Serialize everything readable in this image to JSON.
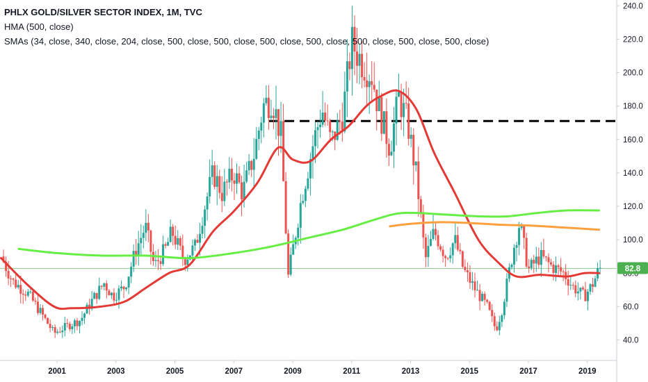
{
  "legend": {
    "title": "PHLX GOLD/SILVER SECTOR INDEX, 1M, TVC",
    "hma": "HMA (500, close)",
    "smas": "SMAs (34, close, 340, close, 204, close, 500, close, 500, close, 500, close, 500, close, 500, close, 500, close, 500, close)"
  },
  "price_tag": "82.8",
  "colors": {
    "up": "#26a69a",
    "down": "#ef5350",
    "hma": "#e53935",
    "sma_green": "#66ee44",
    "sma_orange": "#ffa040",
    "resistance": "#000000",
    "price_line": "#66bb6a",
    "price_tag_bg": "#4caf50"
  },
  "chart_data": {
    "type": "candlestick",
    "y_ticks": [
      "240.0",
      "220.0",
      "200.0",
      "180.0",
      "160.0",
      "140.0",
      "120.0",
      "100.0",
      "80.0",
      "60.0",
      "40.0"
    ],
    "x_ticks": [
      {
        "label": "2001",
        "t": 2001.0
      },
      {
        "label": "2003",
        "t": 2003.0
      },
      {
        "label": "2005",
        "t": 2005.0
      },
      {
        "label": "2007",
        "t": 2007.0
      },
      {
        "label": "2009",
        "t": 2009.0
      },
      {
        "label": "2011",
        "t": 2011.0
      },
      {
        "label": "2013",
        "t": 2013.0
      },
      {
        "label": "2015",
        "t": 2015.0
      },
      {
        "label": "2017",
        "t": 2017.0
      },
      {
        "label": "2019",
        "t": 2019.0
      }
    ],
    "ylim": [
      30,
      243
    ],
    "xlim": [
      1999.1,
      2019.78
    ],
    "candle_anchors": [
      [
        1999.1,
        90
      ],
      [
        1999.5,
        75
      ],
      [
        2000.0,
        68
      ],
      [
        2000.5,
        55
      ],
      [
        2000.9,
        44
      ],
      [
        2001.3,
        48
      ],
      [
        2001.8,
        52
      ],
      [
        2002.2,
        64
      ],
      [
        2002.6,
        74
      ],
      [
        2002.9,
        66
      ],
      [
        2003.3,
        72
      ],
      [
        2003.7,
        95
      ],
      [
        2004.0,
        108
      ],
      [
        2004.3,
        84
      ],
      [
        2004.7,
        95
      ],
      [
        2004.9,
        105
      ],
      [
        2005.3,
        88
      ],
      [
        2005.7,
        96
      ],
      [
        2005.9,
        112
      ],
      [
        2006.3,
        140
      ],
      [
        2006.6,
        128
      ],
      [
        2007.0,
        140
      ],
      [
        2007.3,
        128
      ],
      [
        2007.7,
        152
      ],
      [
        2008.0,
        180
      ],
      [
        2008.3,
        185
      ],
      [
        2008.6,
        162
      ],
      [
        2008.85,
        78
      ],
      [
        2009.3,
        125
      ],
      [
        2009.7,
        158
      ],
      [
        2010.0,
        178
      ],
      [
        2010.3,
        158
      ],
      [
        2010.7,
        175
      ],
      [
        2011.0,
        218
      ],
      [
        2011.3,
        208
      ],
      [
        2011.7,
        198
      ],
      [
        2011.9,
        180
      ],
      [
        2012.3,
        155
      ],
      [
        2012.6,
        185
      ],
      [
        2012.9,
        170
      ],
      [
        2013.2,
        138
      ],
      [
        2013.5,
        88
      ],
      [
        2013.8,
        105
      ],
      [
        2014.2,
        90
      ],
      [
        2014.5,
        100
      ],
      [
        2014.8,
        82
      ],
      [
        2015.2,
        70
      ],
      [
        2015.6,
        60
      ],
      [
        2015.9,
        46
      ],
      [
        2016.1,
        58
      ],
      [
        2016.5,
        95
      ],
      [
        2016.7,
        110
      ],
      [
        2017.0,
        82
      ],
      [
        2017.4,
        90
      ],
      [
        2017.8,
        84
      ],
      [
        2018.2,
        80
      ],
      [
        2018.5,
        72
      ],
      [
        2018.9,
        66
      ],
      [
        2019.2,
        74
      ],
      [
        2019.4,
        82.8
      ]
    ],
    "series": [
      {
        "name": "HMA (500, close)",
        "color": "#e53935",
        "points": [
          [
            1999.1,
            89
          ],
          [
            2000.0,
            73
          ],
          [
            2000.9,
            60
          ],
          [
            2001.5,
            59
          ],
          [
            2002.5,
            60
          ],
          [
            2003.3,
            63
          ],
          [
            2004.0,
            71
          ],
          [
            2004.8,
            80
          ],
          [
            2005.5,
            85
          ],
          [
            2006.3,
            105
          ],
          [
            2007.0,
            117
          ],
          [
            2007.8,
            134
          ],
          [
            2008.5,
            155
          ],
          [
            2009.0,
            148
          ],
          [
            2009.6,
            147
          ],
          [
            2010.3,
            160
          ],
          [
            2010.9,
            168
          ],
          [
            2011.5,
            180
          ],
          [
            2012.0,
            186
          ],
          [
            2012.6,
            189
          ],
          [
            2013.2,
            178
          ],
          [
            2013.8,
            152
          ],
          [
            2014.5,
            128
          ],
          [
            2015.3,
            100
          ],
          [
            2016.0,
            86
          ],
          [
            2016.6,
            78
          ],
          [
            2017.4,
            79
          ],
          [
            2018.3,
            78
          ],
          [
            2018.9,
            80
          ],
          [
            2019.4,
            80
          ]
        ]
      },
      {
        "name": "SMA green",
        "color": "#66ee44",
        "points": [
          [
            1999.7,
            94.5
          ],
          [
            2001.0,
            92
          ],
          [
            2002.5,
            90.5
          ],
          [
            2004.0,
            90.5
          ],
          [
            2005.5,
            89
          ],
          [
            2007.0,
            92
          ],
          [
            2008.3,
            96
          ],
          [
            2009.5,
            101
          ],
          [
            2010.7,
            106
          ],
          [
            2011.6,
            111
          ],
          [
            2012.5,
            115.5
          ],
          [
            2013.2,
            116
          ],
          [
            2014.2,
            115
          ],
          [
            2015.3,
            114
          ],
          [
            2016.3,
            114
          ],
          [
            2017.3,
            116
          ],
          [
            2018.3,
            117.5
          ],
          [
            2019.4,
            117.5
          ]
        ]
      },
      {
        "name": "SMA orange",
        "color": "#ffa040",
        "points": [
          [
            2012.3,
            108
          ],
          [
            2013.0,
            109.5
          ],
          [
            2014.0,
            110.5
          ],
          [
            2015.0,
            110
          ],
          [
            2016.0,
            109
          ],
          [
            2017.0,
            108.5
          ],
          [
            2018.0,
            107.5
          ],
          [
            2019.4,
            106
          ]
        ]
      }
    ],
    "resistance_level": 171,
    "resistance_start": 2008.2,
    "last_price": 82.8
  }
}
